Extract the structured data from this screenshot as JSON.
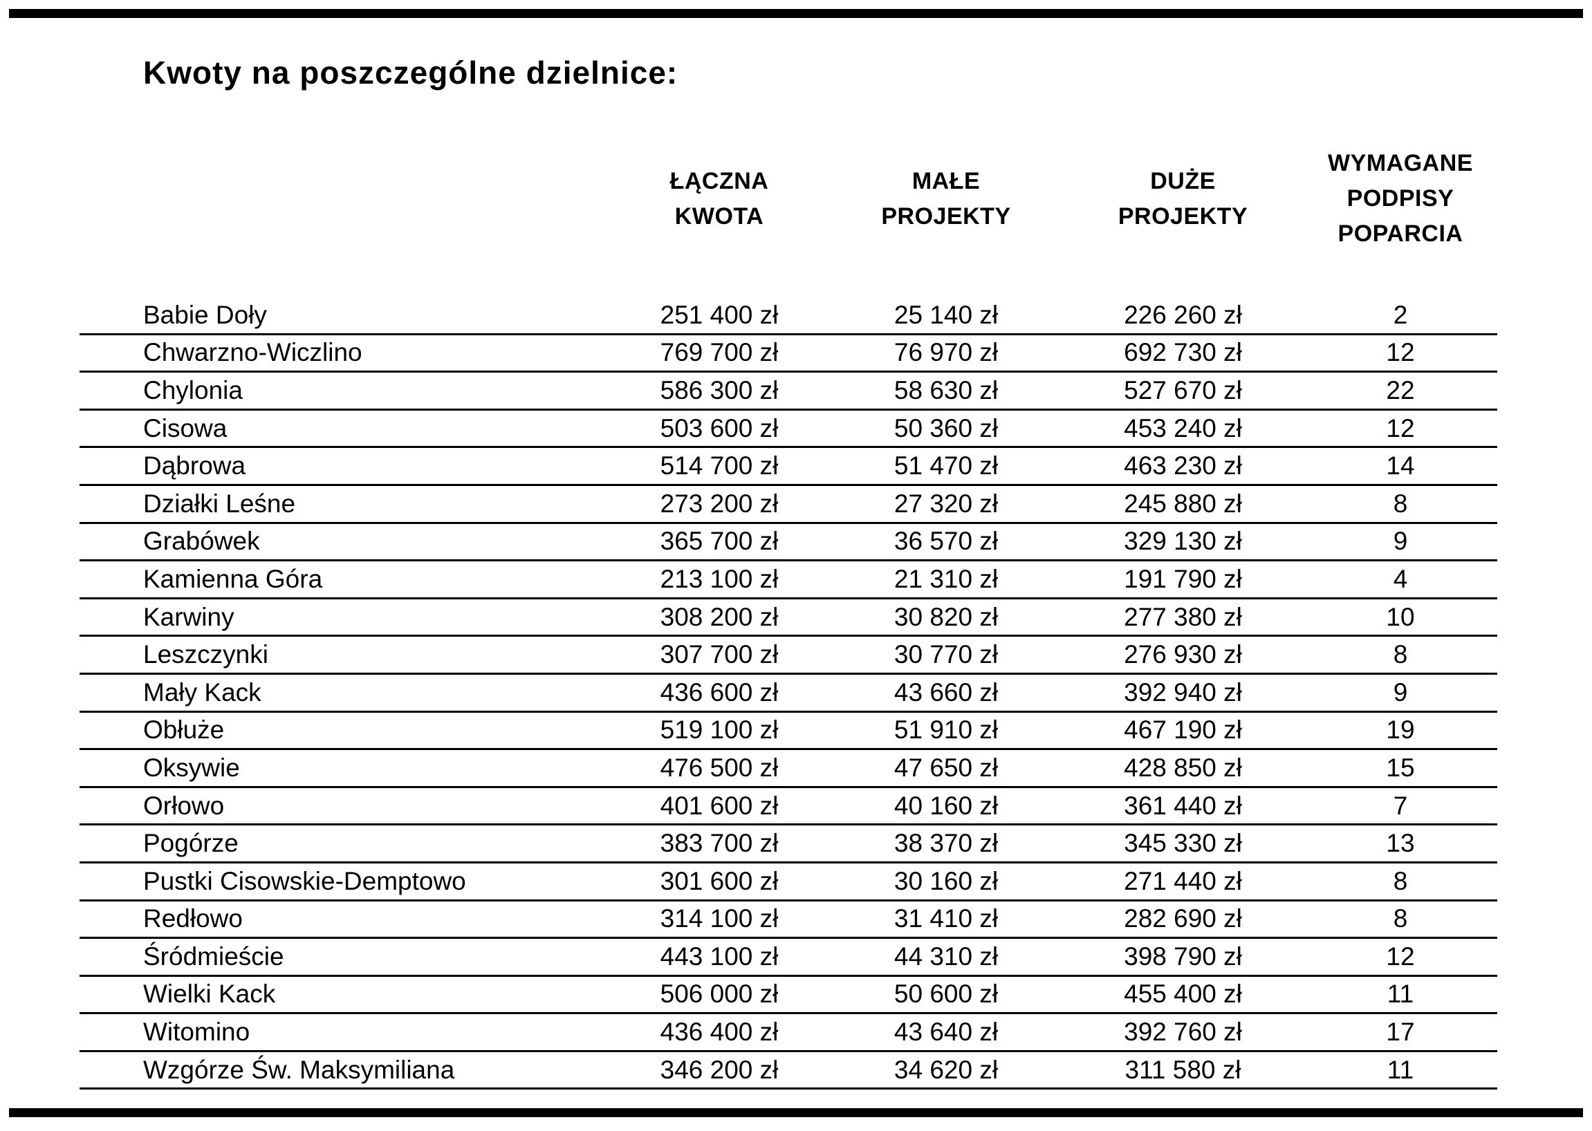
{
  "page": {
    "title": "Kwoty na poszczególne dzielnice:"
  },
  "colors": {
    "background": "#ffffff",
    "text": "#000000",
    "rules": "#000000"
  },
  "table": {
    "headers": {
      "district": "",
      "total": "ŁĄCZNA\nKWOTA",
      "small": "MAŁE\nPROJEKTY",
      "large": "DUŻE\nPROJEKTY",
      "signatures": "WYMAGANE\nPODPISY\nPOPARCIA"
    },
    "rows": [
      {
        "district": "Babie Doły",
        "total": "251 400 zł",
        "small": "25 140 zł",
        "large": "226 260 zł",
        "signatures": "2"
      },
      {
        "district": "Chwarzno-Wiczlino",
        "total": "769 700 zł",
        "small": "76 970 zł",
        "large": "692 730 zł",
        "signatures": "12"
      },
      {
        "district": "Chylonia",
        "total": "586 300 zł",
        "small": "58 630 zł",
        "large": "527 670 zł",
        "signatures": "22"
      },
      {
        "district": "Cisowa",
        "total": "503 600 zł",
        "small": "50 360 zł",
        "large": "453 240 zł",
        "signatures": "12"
      },
      {
        "district": "Dąbrowa",
        "total": "514 700 zł",
        "small": "51 470 zł",
        "large": "463 230 zł",
        "signatures": "14"
      },
      {
        "district": "Działki Leśne",
        "total": "273 200 zł",
        "small": "27 320 zł",
        "large": "245 880 zł",
        "signatures": "8"
      },
      {
        "district": "Grabówek",
        "total": "365 700 zł",
        "small": "36 570 zł",
        "large": "329 130 zł",
        "signatures": "9"
      },
      {
        "district": "Kamienna Góra",
        "total": "213 100 zł",
        "small": "21 310 zł",
        "large": "191 790 zł",
        "signatures": "4"
      },
      {
        "district": "Karwiny",
        "total": "308 200 zł",
        "small": "30 820 zł",
        "large": "277 380 zł",
        "signatures": "10"
      },
      {
        "district": "Leszczynki",
        "total": "307 700 zł",
        "small": "30 770 zł",
        "large": "276 930 zł",
        "signatures": "8"
      },
      {
        "district": "Mały Kack",
        "total": "436 600 zł",
        "small": "43 660 zł",
        "large": "392 940 zł",
        "signatures": "9"
      },
      {
        "district": "Obłuże",
        "total": "519 100 zł",
        "small": "51 910 zł",
        "large": "467 190 zł",
        "signatures": "19"
      },
      {
        "district": "Oksywie",
        "total": "476 500 zł",
        "small": "47 650 zł",
        "large": "428 850 zł",
        "signatures": "15"
      },
      {
        "district": "Orłowo",
        "total": "401 600 zł",
        "small": "40 160 zł",
        "large": "361 440 zł",
        "signatures": "7"
      },
      {
        "district": "Pogórze",
        "total": "383 700 zł",
        "small": "38 370 zł",
        "large": "345 330 zł",
        "signatures": "13"
      },
      {
        "district": "Pustki Cisowskie-Demptowo",
        "total": "301 600 zł",
        "small": "30 160 zł",
        "large": "271 440 zł",
        "signatures": "8"
      },
      {
        "district": "Redłowo",
        "total": "314 100 zł",
        "small": "31 410 zł",
        "large": "282 690 zł",
        "signatures": "8"
      },
      {
        "district": "Śródmieście",
        "total": "443 100 zł",
        "small": "44 310 zł",
        "large": "398 790 zł",
        "signatures": "12"
      },
      {
        "district": "Wielki Kack",
        "total": "506 000 zł",
        "small": "50 600 zł",
        "large": "455 400 zł",
        "signatures": "11"
      },
      {
        "district": "Witomino",
        "total": "436 400 zł",
        "small": "43 640 zł",
        "large": "392 760 zł",
        "signatures": "17"
      },
      {
        "district": "Wzgórze Św. Maksymiliana",
        "total": "346 200 zł",
        "small": "34 620 zł",
        "large": "311 580 zł",
        "signatures": "11"
      }
    ]
  }
}
